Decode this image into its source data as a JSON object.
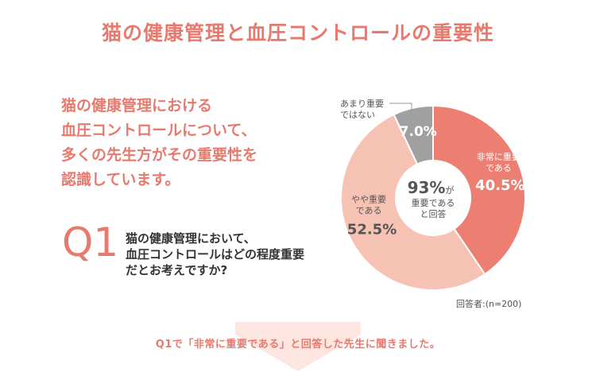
{
  "page": {
    "title": "猫の健康管理と血圧コントロールの重要性",
    "headline_lines": [
      "猫の健康管理における",
      "血圧コントロールについて、",
      "多くの先生方がその重要性を",
      "認識しています。"
    ],
    "q_label": "Q1",
    "question_lines": [
      "猫の健康管理において、",
      "血圧コントロールはどの程度重要",
      "だとお考えですか?"
    ],
    "respondents": "回答者:(n=200)",
    "followup": "Q1で「非常に重要である」と回答した先生に聞きました。",
    "colors": {
      "accent": "#e77a6e",
      "very_important": "#ec7f72",
      "somewhat_important": "#f6c2b4",
      "not_important": "#a0a0a0",
      "arrow_fill": "#fce6df"
    }
  },
  "chart_data": {
    "type": "pie",
    "variant": "donut",
    "title": "",
    "slices": [
      {
        "label_lines": [
          "非常に重要",
          "である"
        ],
        "value": 40.5,
        "value_text": "40.5%"
      },
      {
        "label_lines": [
          "やや重要",
          "である"
        ],
        "value": 52.5,
        "value_text": "52.5%"
      },
      {
        "label_lines": [
          "あまり重要",
          "ではない"
        ],
        "value": 7.0,
        "value_text": "7.0%"
      }
    ],
    "center": {
      "value_text": "93%",
      "suffix": "が",
      "caption_lines": [
        "重要である",
        "と回答"
      ]
    }
  }
}
